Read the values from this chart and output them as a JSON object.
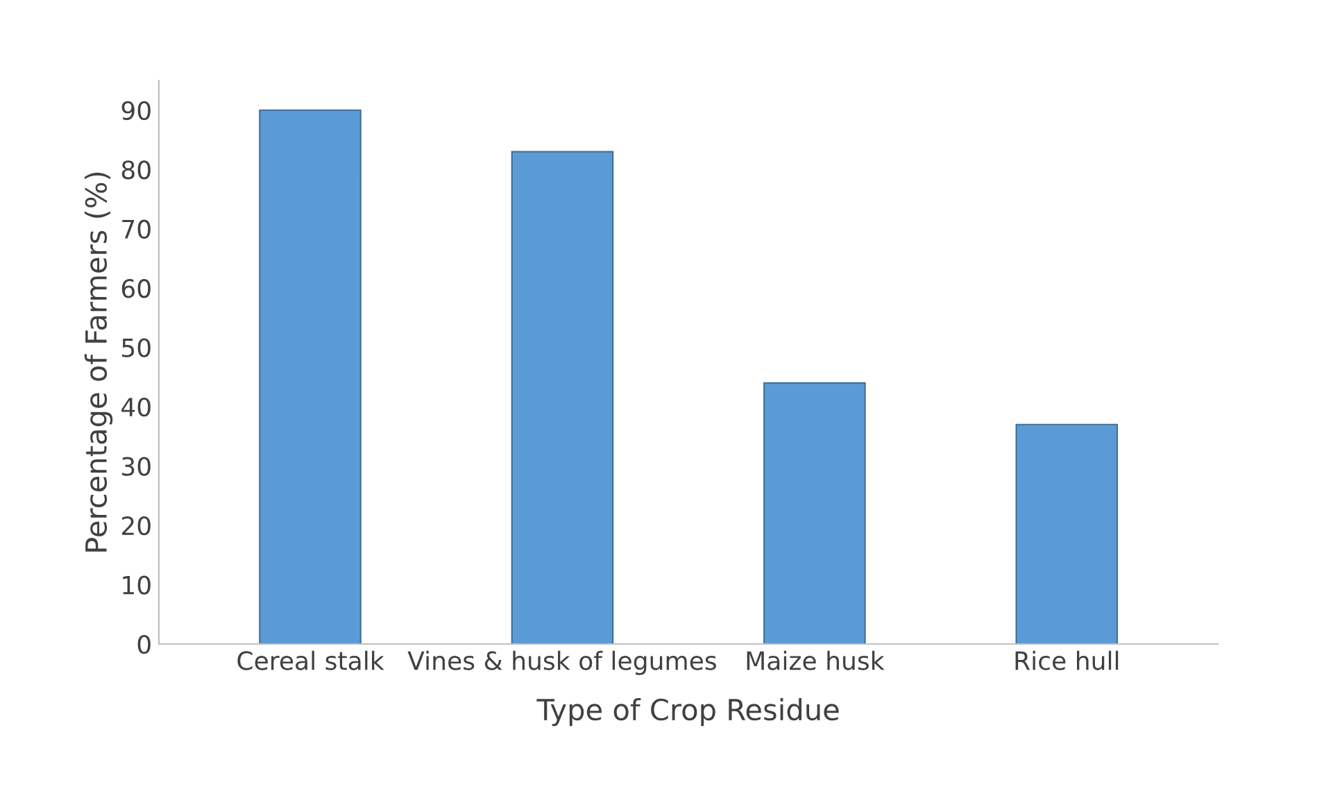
{
  "chart_data": {
    "type": "bar",
    "xlabel": "Type of Crop Residue",
    "ylabel": "Percentage of Farmers (%)",
    "categories": [
      "Cereal stalk",
      "Vines & husk of legumes",
      "Maize husk",
      "Rice hull"
    ],
    "values": [
      90,
      83,
      44,
      37
    ],
    "color": "#5b9bd5",
    "ylim": [
      0,
      95
    ],
    "yticks": [
      0,
      10,
      20,
      30,
      40,
      50,
      60,
      70,
      80,
      90
    ],
    "grid": false
  }
}
